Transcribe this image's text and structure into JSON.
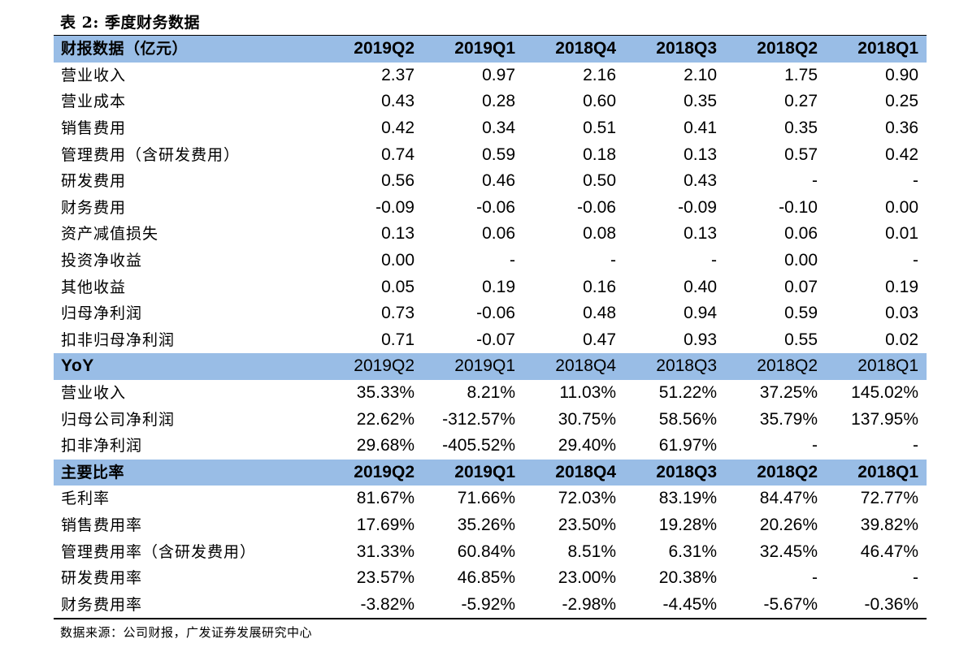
{
  "title": "表 2:  季度财务数据",
  "source": "数据来源：公司财报，广发证券发展研究中心",
  "colors": {
    "header_bg": "#99bde6"
  },
  "sections": [
    {
      "header": {
        "label": "财报数据（亿元）",
        "periods": [
          "2019Q2",
          "2019Q1",
          "2018Q4",
          "2018Q3",
          "2018Q2",
          "2018Q1"
        ]
      },
      "rows": [
        {
          "label": "营业收入",
          "values": [
            "2.37",
            "0.97",
            "2.16",
            "2.10",
            "1.75",
            "0.90"
          ]
        },
        {
          "label": "营业成本",
          "values": [
            "0.43",
            "0.28",
            "0.60",
            "0.35",
            "0.27",
            "0.25"
          ]
        },
        {
          "label": "销售费用",
          "values": [
            "0.42",
            "0.34",
            "0.51",
            "0.41",
            "0.35",
            "0.36"
          ]
        },
        {
          "label": "管理费用（含研发费用）",
          "values": [
            "0.74",
            "0.59",
            "0.18",
            "0.13",
            "0.57",
            "0.42"
          ]
        },
        {
          "label": "研发费用",
          "values": [
            "0.56",
            "0.46",
            "0.50",
            "0.43",
            "-",
            "-"
          ]
        },
        {
          "label": "财务费用",
          "values": [
            "-0.09",
            "-0.06",
            "-0.06",
            "-0.09",
            "-0.10",
            "0.00"
          ]
        },
        {
          "label": "资产减值损失",
          "values": [
            "0.13",
            "0.06",
            "0.08",
            "0.13",
            "0.06",
            "0.01"
          ]
        },
        {
          "label": "投资净收益",
          "values": [
            "0.00",
            "-",
            "-",
            "-",
            "0.00",
            "-"
          ]
        },
        {
          "label": "其他收益",
          "values": [
            "0.05",
            "0.19",
            "0.16",
            "0.40",
            "0.07",
            "0.19"
          ]
        },
        {
          "label": "归母净利润",
          "values": [
            "0.73",
            "-0.06",
            "0.48",
            "0.94",
            "0.59",
            "0.03"
          ]
        },
        {
          "label": "扣非归母净利润",
          "values": [
            "0.71",
            "-0.07",
            "0.47",
            "0.93",
            "0.55",
            "0.02"
          ]
        }
      ]
    },
    {
      "header": {
        "label": "YoY",
        "periods": [
          "2019Q2",
          "2019Q1",
          "2018Q4",
          "2018Q3",
          "2018Q2",
          "2018Q1"
        ]
      },
      "rows": [
        {
          "label": "营业收入",
          "values": [
            "35.33%",
            "8.21%",
            "11.03%",
            "51.22%",
            "37.25%",
            "145.02%"
          ]
        },
        {
          "label": "归母公司净利润",
          "values": [
            "22.62%",
            "-312.57%",
            "30.75%",
            "58.56%",
            "35.79%",
            "137.95%"
          ]
        },
        {
          "label": "扣非净利润",
          "values": [
            "29.68%",
            "-405.52%",
            "29.40%",
            "61.97%",
            "-",
            "-"
          ]
        }
      ]
    },
    {
      "header": {
        "label": "主要比率",
        "periods": [
          "2019Q2",
          "2019Q1",
          "2018Q4",
          "2018Q3",
          "2018Q2",
          "2018Q1"
        ]
      },
      "rows": [
        {
          "label": "毛利率",
          "values": [
            "81.67%",
            "71.66%",
            "72.03%",
            "83.19%",
            "84.47%",
            "72.77%"
          ]
        },
        {
          "label": "销售费用率",
          "values": [
            "17.69%",
            "35.26%",
            "23.50%",
            "19.28%",
            "20.26%",
            "39.82%"
          ]
        },
        {
          "label": "管理费用率（含研发费用）",
          "values": [
            "31.33%",
            "60.84%",
            "8.51%",
            "6.31%",
            "32.45%",
            "46.47%"
          ]
        },
        {
          "label": "研发费用率",
          "values": [
            "23.57%",
            "46.85%",
            "23.00%",
            "20.38%",
            "-",
            "-"
          ]
        },
        {
          "label": "财务费用率",
          "values": [
            "-3.82%",
            "-5.92%",
            "-2.98%",
            "-4.45%",
            "-5.67%",
            "-0.36%"
          ]
        }
      ]
    }
  ]
}
